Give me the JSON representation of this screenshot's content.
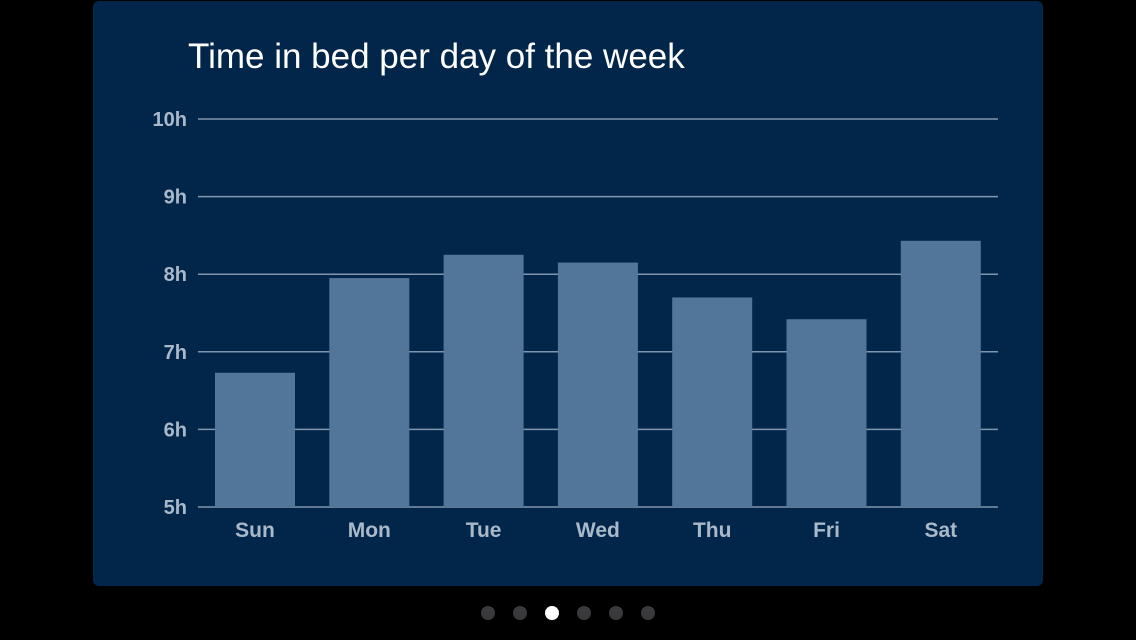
{
  "chart_data": {
    "type": "bar",
    "title": "Time in bed per day of the week",
    "categories": [
      "Sun",
      "Mon",
      "Tue",
      "Wed",
      "Thu",
      "Fri",
      "Sat"
    ],
    "values": [
      6.73,
      7.95,
      8.25,
      8.15,
      7.7,
      7.42,
      8.43
    ],
    "ylim": [
      5,
      10
    ],
    "yticks": [
      5,
      6,
      7,
      8,
      9,
      10
    ],
    "ytick_labels": [
      "5h",
      "6h",
      "7h",
      "8h",
      "9h",
      "10h"
    ],
    "xlabel": "",
    "ylabel": "",
    "grid": true,
    "legend": "none",
    "colors": {
      "background": "#02264a",
      "bar": "#527699",
      "grid": "#7f96ad",
      "tick_label": "#a9b9c9",
      "title": "#ffffff"
    }
  },
  "pager": {
    "count": 6,
    "active_index": 2
  }
}
